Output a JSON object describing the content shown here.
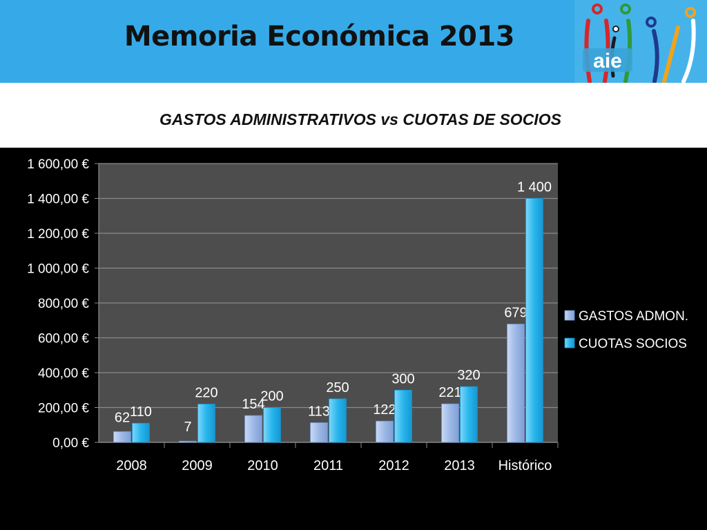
{
  "header": {
    "title": "Memoria Económica 2013",
    "logo_text": "aie",
    "band_color": "#36aae8"
  },
  "chart_data": {
    "type": "bar",
    "title": "GASTOS ADMINISTRATIVOS vs CUOTAS DE SOCIOS",
    "categories": [
      "2008",
      "2009",
      "2010",
      "2011",
      "2012",
      "2013",
      "Histórico"
    ],
    "series": [
      {
        "name": "GASTOS ADMON.",
        "values": [
          62,
          7,
          154,
          113,
          122,
          221,
          679
        ],
        "labels": [
          "62",
          "7",
          "154",
          "113",
          "122",
          "221",
          "679"
        ],
        "color": "#9db8e6"
      },
      {
        "name": "CUOTAS SOCIOS",
        "values": [
          110,
          220,
          200,
          250,
          300,
          320,
          1400
        ],
        "labels": [
          "110",
          "220",
          "200",
          "250",
          "300",
          "320",
          "1 400"
        ],
        "color": "#27b6ee"
      }
    ],
    "ylim": [
      0,
      1600
    ],
    "yticks": [
      0,
      200,
      400,
      600,
      800,
      1000,
      1200,
      1400,
      1600
    ],
    "ytick_labels": [
      "0,00 €",
      "200,00 €",
      "400,00 €",
      "600,00 €",
      "800,00 €",
      "1 000,00 €",
      "1 200,00 €",
      "1 400,00 €",
      "1 600,00 €"
    ],
    "xlabel": "",
    "ylabel": "",
    "grid": true,
    "legend_position": "right",
    "plot_background": "#4d4d4d"
  }
}
